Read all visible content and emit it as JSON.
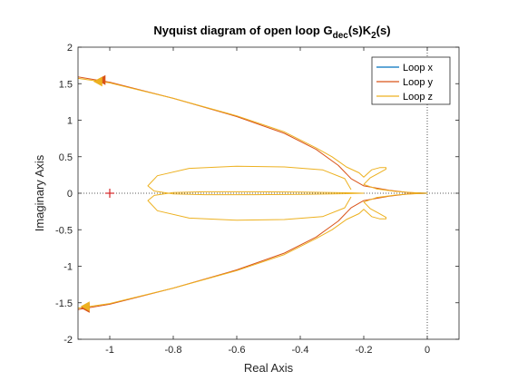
{
  "chart_data": {
    "type": "line",
    "title": {
      "main": "Nyquist diagram of open loop G",
      "sub1": "dec",
      "mid": "(s)K",
      "sub2": "2",
      "tail": "(s)"
    },
    "xlabel": "Real Axis",
    "ylabel": "Imaginary Axis",
    "xlim": [
      -1.1,
      0.1
    ],
    "ylim": [
      -2,
      2
    ],
    "xticks": [
      -1,
      -0.8,
      -0.6,
      -0.4,
      -0.2,
      0
    ],
    "xtick_labels": [
      "-1",
      "-0.8",
      "-0.6",
      "-0.4",
      "-0.2",
      "0"
    ],
    "yticks": [
      -2,
      -1.5,
      -1,
      -0.5,
      0,
      0.5,
      1,
      1.5,
      2
    ],
    "ytick_labels": [
      "-2",
      "-1.5",
      "-1",
      "-0.5",
      "0",
      "0.5",
      "1",
      "1.5",
      "2"
    ],
    "grid": false,
    "legend_position": "top-right",
    "critical_point": {
      "x": -1,
      "y": 0,
      "color": "#d62728"
    },
    "series": [
      {
        "name": "Loop x",
        "color": "#0072BD",
        "points": [
          [
            -0.04,
            0.006
          ],
          [
            -0.02,
            0.003
          ],
          [
            -0.005,
            0.001
          ],
          [
            0,
            0
          ],
          [
            -0.005,
            -0.001
          ],
          [
            -0.02,
            -0.003
          ],
          [
            -0.04,
            -0.006
          ]
        ]
      },
      {
        "name": "Loop y",
        "color": "#D95319",
        "points": [
          [
            -1.11,
            1.6
          ],
          [
            -1.0,
            1.52
          ],
          [
            -0.8,
            1.3
          ],
          [
            -0.6,
            1.05
          ],
          [
            -0.45,
            0.82
          ],
          [
            -0.35,
            0.6
          ],
          [
            -0.28,
            0.38
          ],
          [
            -0.24,
            0.2
          ],
          [
            -0.2,
            0.1
          ],
          [
            -0.12,
            0.04
          ],
          [
            -0.06,
            0.01
          ],
          [
            -0.02,
            0.002
          ],
          [
            0,
            0
          ],
          [
            -0.02,
            -0.002
          ],
          [
            -0.06,
            -0.01
          ],
          [
            -0.12,
            -0.04
          ],
          [
            -0.2,
            -0.1
          ],
          [
            -0.24,
            -0.2
          ],
          [
            -0.28,
            -0.38
          ],
          [
            -0.35,
            -0.6
          ],
          [
            -0.45,
            -0.82
          ],
          [
            -0.6,
            -1.05
          ],
          [
            -0.8,
            -1.3
          ],
          [
            -1.0,
            -1.52
          ],
          [
            -1.11,
            -1.6
          ]
        ]
      },
      {
        "name": "Loop z",
        "color": "#EDB120",
        "segments": [
          [
            [
              -1.11,
              1.58
            ],
            [
              -1.0,
              1.51
            ],
            [
              -0.8,
              1.3
            ],
            [
              -0.6,
              1.06
            ],
            [
              -0.45,
              0.84
            ],
            [
              -0.35,
              0.62
            ],
            [
              -0.3,
              0.5
            ],
            [
              -0.255,
              0.36
            ],
            [
              -0.215,
              0.28
            ],
            [
              -0.2,
              0.22
            ],
            [
              -0.175,
              0.32
            ],
            [
              -0.15,
              0.35
            ],
            [
              -0.13,
              0.35
            ],
            [
              -0.13,
              0.33
            ],
            [
              -0.155,
              0.27
            ],
            [
              -0.18,
              0.21
            ],
            [
              -0.2,
              0.12
            ],
            [
              -0.16,
              0.06
            ],
            [
              -0.1,
              0.025
            ],
            [
              -0.05,
              0.01
            ],
            [
              -0.02,
              0.003
            ],
            [
              0,
              0
            ],
            [
              -0.02,
              -0.003
            ],
            [
              -0.05,
              -0.01
            ],
            [
              -0.1,
              -0.025
            ],
            [
              -0.16,
              -0.06
            ],
            [
              -0.2,
              -0.12
            ],
            [
              -0.18,
              -0.21
            ],
            [
              -0.155,
              -0.27
            ],
            [
              -0.13,
              -0.33
            ],
            [
              -0.13,
              -0.35
            ],
            [
              -0.15,
              -0.35
            ],
            [
              -0.175,
              -0.32
            ],
            [
              -0.2,
              -0.22
            ],
            [
              -0.215,
              -0.28
            ],
            [
              -0.255,
              -0.36
            ],
            [
              -0.3,
              -0.5
            ],
            [
              -0.35,
              -0.62
            ],
            [
              -0.45,
              -0.84
            ],
            [
              -0.6,
              -1.06
            ],
            [
              -0.8,
              -1.3
            ],
            [
              -1.0,
              -1.51
            ],
            [
              -1.11,
              -1.58
            ]
          ],
          [
            [
              -0.24,
              0.05
            ],
            [
              -0.26,
              0.2
            ],
            [
              -0.33,
              0.32
            ],
            [
              -0.45,
              0.36
            ],
            [
              -0.6,
              0.37
            ],
            [
              -0.75,
              0.34
            ],
            [
              -0.85,
              0.24
            ],
            [
              -0.88,
              0.1
            ],
            [
              -0.86,
              0.03
            ],
            [
              -0.8,
              -0.01
            ],
            [
              -0.7,
              -0.02
            ],
            [
              -0.55,
              -0.02
            ],
            [
              -0.4,
              -0.015
            ],
            [
              -0.3,
              -0.01
            ],
            [
              -0.24,
              -0.005
            ],
            [
              -0.2,
              0
            ],
            [
              -0.24,
              0.005
            ],
            [
              -0.3,
              0.01
            ],
            [
              -0.4,
              0.015
            ],
            [
              -0.55,
              0.02
            ],
            [
              -0.7,
              0.02
            ],
            [
              -0.8,
              0.01
            ],
            [
              -0.86,
              -0.03
            ],
            [
              -0.88,
              -0.1
            ],
            [
              -0.85,
              -0.24
            ],
            [
              -0.75,
              -0.34
            ],
            [
              -0.6,
              -0.37
            ],
            [
              -0.45,
              -0.36
            ],
            [
              -0.33,
              -0.32
            ],
            [
              -0.26,
              -0.2
            ],
            [
              -0.24,
              -0.05
            ]
          ]
        ]
      }
    ]
  }
}
